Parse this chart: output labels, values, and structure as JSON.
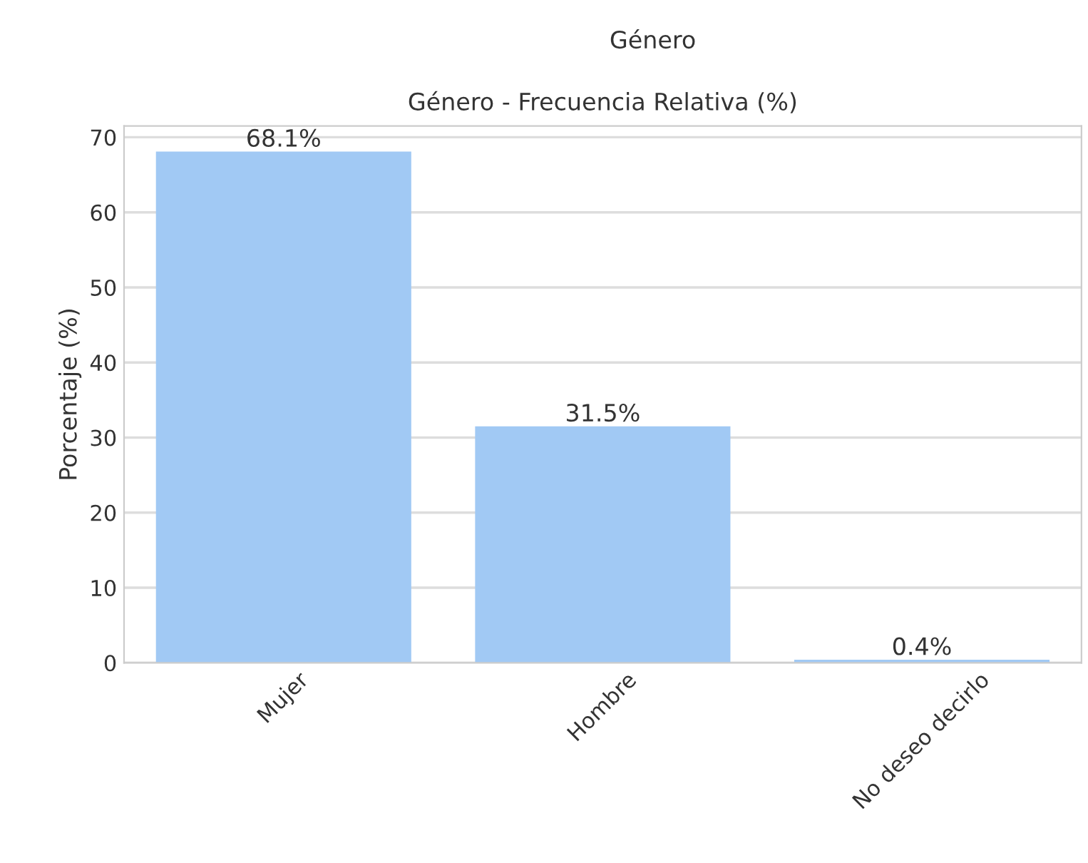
{
  "chart_data": {
    "type": "bar",
    "title": "Género",
    "subtitle": "Género - Frecuencia Relativa (%)",
    "ylabel": "Porcentaje (%)",
    "categories": [
      "Mujer",
      "Hombre",
      "No deseo decirlo"
    ],
    "values": [
      68.1,
      31.5,
      0.4
    ],
    "value_labels": [
      "68.1%",
      "31.5%",
      "0.4%"
    ],
    "color": "#a1c9f4",
    "ylim": [
      0,
      71.5
    ],
    "yticks": [
      0,
      10,
      20,
      30,
      40,
      50,
      60,
      70
    ],
    "grid": "y",
    "legend": false
  }
}
